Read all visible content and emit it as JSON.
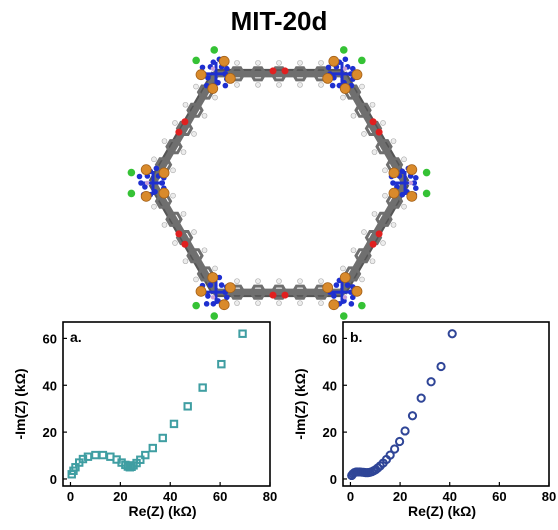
{
  "title": "MIT-20d",
  "colors": {
    "carbon": "#6f6f6f",
    "nitrogen": "#1e2fd0",
    "oxygen": "#e02020",
    "copper": "#d98a2b",
    "chlorine": "#35c235",
    "hydrogen": "#ececec",
    "series_a": "#3f9ea2",
    "series_b": "#2f4597"
  },
  "chart_data": [
    {
      "type": "scatter",
      "panel_label": "a.",
      "xlabel": "Re(Z) (kΩ)",
      "ylabel": "-Im(Z) (kΩ)",
      "xlim": [
        -3,
        80
      ],
      "ylim": [
        -3,
        67
      ],
      "xticks": [
        "0",
        "20",
        "40",
        "60",
        "80"
      ],
      "yticks": [
        "0",
        "20",
        "40",
        "60"
      ],
      "marker": "square",
      "color": "#3f9ea2",
      "series": [
        {
          "x": [
            0.5,
            1.2,
            2.0,
            3.5,
            5.0,
            7.0,
            10.0,
            13.0,
            16.0,
            18.5,
            20.5,
            22.0,
            23.0,
            23.8,
            24.5,
            25.3,
            26.5,
            28.0,
            30.0,
            33.0,
            37.0,
            41.5,
            47.0,
            53.0,
            60.5,
            69.0
          ],
          "y": [
            2.0,
            3.5,
            5.0,
            7.0,
            8.5,
            9.5,
            10.2,
            10.2,
            9.5,
            8.3,
            7.0,
            6.0,
            5.3,
            5.0,
            5.2,
            5.8,
            6.8,
            8.2,
            10.2,
            13.2,
            17.5,
            23.5,
            31.0,
            39.0,
            49.0,
            62.0
          ]
        }
      ]
    },
    {
      "type": "scatter",
      "panel_label": "b.",
      "xlabel": "Re(Z) (kΩ)",
      "ylabel": "-Im(Z) (kΩ)",
      "xlim": [
        -3,
        80
      ],
      "ylim": [
        -3,
        67
      ],
      "xticks": [
        "0",
        "20",
        "40",
        "60",
        "80"
      ],
      "yticks": [
        "0",
        "20",
        "40",
        "60"
      ],
      "marker": "circle",
      "color": "#2f4597",
      "series": [
        {
          "x": [
            0.5,
            1.0,
            1.6,
            2.3,
            3.0,
            3.8,
            4.6,
            5.4,
            6.2,
            7.0,
            7.8,
            8.6,
            9.4,
            10.2,
            11.0,
            12.0,
            13.2,
            14.5,
            16.0,
            17.8,
            19.8,
            22.0,
            25.0,
            28.5,
            32.5,
            36.5,
            41.0
          ],
          "y": [
            1.5,
            2.2,
            2.7,
            3.0,
            3.0,
            3.0,
            2.9,
            2.8,
            2.7,
            2.7,
            2.8,
            3.1,
            3.5,
            4.0,
            4.7,
            5.6,
            6.8,
            8.3,
            10.2,
            12.8,
            16.0,
            20.5,
            27.0,
            34.5,
            41.5,
            48.0,
            62.0
          ]
        }
      ]
    }
  ]
}
